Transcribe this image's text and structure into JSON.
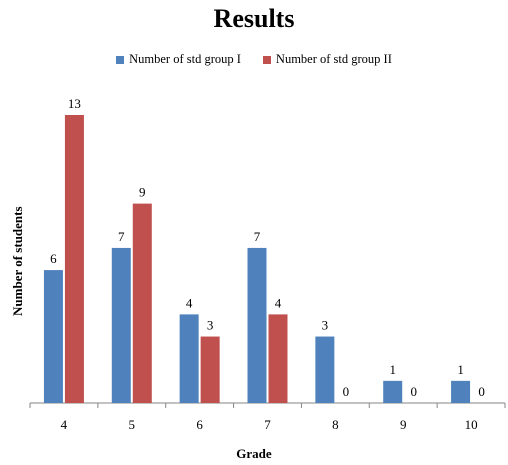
{
  "chart_data": {
    "type": "bar",
    "title": "Results",
    "xlabel": "Grade",
    "ylabel": "Number of students",
    "categories": [
      "4",
      "5",
      "6",
      "7",
      "8",
      "9",
      "10"
    ],
    "series": [
      {
        "name": "Number of std group  I",
        "color": "#4F81BD",
        "values": [
          6,
          7,
          4,
          7,
          3,
          1,
          1
        ]
      },
      {
        "name": "Number of std group  II",
        "color": "#C0504D",
        "values": [
          13,
          9,
          3,
          4,
          0,
          0,
          0
        ]
      }
    ],
    "ylim": [
      0,
      13
    ],
    "grid": false,
    "legend_position": "top",
    "data_labels": true
  }
}
